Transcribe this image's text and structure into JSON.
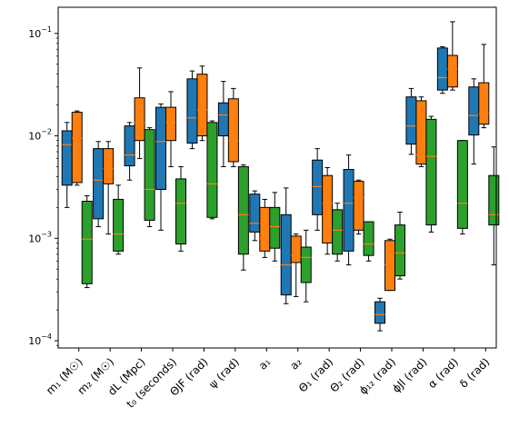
{
  "chart_data": {
    "type": "box",
    "title": "",
    "xlabel": "",
    "ylabel": "",
    "yscale": "log",
    "ylim": [
      8.5e-05,
      0.18
    ],
    "yticks": [
      {
        "value": 0.0001,
        "base": "10",
        "exp": "−4"
      },
      {
        "value": 0.001,
        "base": "10",
        "exp": "−3"
      },
      {
        "value": 0.01,
        "base": "10",
        "exp": "−2"
      },
      {
        "value": 0.1,
        "base": "10",
        "exp": "−1"
      }
    ],
    "categories": [
      "m₁ (M☉)",
      "m₂ (M☉)",
      "dL (Mpc)",
      "t₀ (seconds)",
      "ΘJF (rad)",
      "ψ (rad)",
      "a₁",
      "a₂",
      "Θ₁ (rad)",
      "Θ₂ (rad)",
      "ϕ₁₂ (rad)",
      "ϕJl (rad)",
      "α (rad)",
      "δ (rad)"
    ],
    "grid": false,
    "legend": "none",
    "series": [
      {
        "color": "#1f77b4",
        "median_color": "#ff7f0e",
        "boxes": [
          {
            "whislo": 0.002,
            "q1": 0.0033,
            "med": 0.0082,
            "q3": 0.0112,
            "whishi": 0.0135
          },
          {
            "whislo": 0.0013,
            "q1": 0.00155,
            "med": 0.0037,
            "q3": 0.0075,
            "whishi": 0.0088
          },
          {
            "whislo": 0.0037,
            "q1": 0.0051,
            "med": 0.0065,
            "q3": 0.0125,
            "whishi": 0.0135
          },
          {
            "whislo": 0.0012,
            "q1": 0.003,
            "med": 0.0088,
            "q3": 0.019,
            "whishi": 0.0205
          },
          {
            "whislo": 0.0075,
            "q1": 0.0085,
            "med": 0.015,
            "q3": 0.036,
            "whishi": 0.043
          },
          {
            "whislo": 0.005,
            "q1": 0.01,
            "med": 0.016,
            "q3": 0.021,
            "whishi": 0.034
          },
          {
            "whislo": 0.00095,
            "q1": 0.00115,
            "med": 0.0014,
            "q3": 0.0027,
            "whishi": 0.0029
          },
          {
            "whislo": 0.00023,
            "q1": 0.00028,
            "med": 0.00055,
            "q3": 0.0017,
            "whishi": 0.0031
          },
          {
            "whislo": 0.0012,
            "q1": 0.0017,
            "med": 0.0032,
            "q3": 0.0058,
            "whishi": 0.0075
          },
          {
            "whislo": 0.00055,
            "q1": 0.00075,
            "med": 0.0022,
            "q3": 0.0047,
            "whishi": 0.0065
          },
          {
            "whislo": 0.000125,
            "q1": 0.000148,
            "med": 0.00018,
            "q3": 0.00024,
            "whishi": 0.00026
          },
          {
            "whislo": 0.0066,
            "q1": 0.0083,
            "med": 0.0125,
            "q3": 0.024,
            "whishi": 0.029
          },
          {
            "whislo": 0.026,
            "q1": 0.028,
            "med": 0.037,
            "q3": 0.072,
            "whishi": 0.074
          },
          {
            "whislo": 0.0053,
            "q1": 0.0102,
            "med": 0.0158,
            "q3": 0.03,
            "whishi": 0.036
          }
        ]
      },
      {
        "color": "#ff7f0e",
        "median_color": "#ff7f0e",
        "boxes": [
          {
            "whislo": 0.0033,
            "q1": 0.0035,
            "med": 0.0095,
            "q3": 0.017,
            "whishi": 0.0175
          },
          {
            "whislo": 0.0011,
            "q1": 0.0034,
            "med": 0.0048,
            "q3": 0.0075,
            "whishi": 0.0088
          },
          {
            "whislo": 0.006,
            "q1": 0.009,
            "med": 0.0135,
            "q3": 0.0235,
            "whishi": 0.046
          },
          {
            "whislo": 0.005,
            "q1": 0.009,
            "med": 0.0135,
            "q3": 0.019,
            "whishi": 0.027
          },
          {
            "whislo": 0.009,
            "q1": 0.01,
            "med": 0.018,
            "q3": 0.04,
            "whishi": 0.048
          },
          {
            "whislo": 0.005,
            "q1": 0.0056,
            "med": 0.009,
            "q3": 0.023,
            "whishi": 0.029
          },
          {
            "whislo": 0.00065,
            "q1": 0.00075,
            "med": 0.001,
            "q3": 0.002,
            "whishi": 0.0024
          },
          {
            "whislo": 0.00027,
            "q1": 0.00058,
            "med": 0.00068,
            "q3": 0.00105,
            "whishi": 0.0011
          },
          {
            "whislo": 0.0007,
            "q1": 0.0009,
            "med": 0.0022,
            "q3": 0.0041,
            "whishi": 0.0049
          },
          {
            "whislo": 0.0011,
            "q1": 0.0012,
            "med": 0.0025,
            "q3": 0.0036,
            "whishi": 0.0037
          },
          {
            "whislo": 0.00031,
            "q1": 0.00031,
            "med": 0.00055,
            "q3": 0.00095,
            "whishi": 0.00098
          },
          {
            "whislo": 0.005,
            "q1": 0.0053,
            "med": 0.0065,
            "q3": 0.022,
            "whishi": 0.024
          },
          {
            "whislo": 0.028,
            "q1": 0.03,
            "med": 0.045,
            "q3": 0.061,
            "whishi": 0.13
          },
          {
            "whislo": 0.012,
            "q1": 0.013,
            "med": 0.0165,
            "q3": 0.033,
            "whishi": 0.078
          }
        ]
      },
      {
        "color": "#2ca02c",
        "median_color": "#ff7f0e",
        "boxes": [
          {
            "whislo": 0.00033,
            "q1": 0.00036,
            "med": 0.00098,
            "q3": 0.0023,
            "whishi": 0.0026
          },
          {
            "whislo": 0.0007,
            "q1": 0.00075,
            "med": 0.0011,
            "q3": 0.0024,
            "whishi": 0.0033
          },
          {
            "whislo": 0.0013,
            "q1": 0.0015,
            "med": 0.003,
            "q3": 0.0115,
            "whishi": 0.012
          },
          {
            "whislo": 0.00075,
            "q1": 0.00088,
            "med": 0.0022,
            "q3": 0.0038,
            "whishi": 0.005
          },
          {
            "whislo": 0.00155,
            "q1": 0.0016,
            "med": 0.0034,
            "q3": 0.0135,
            "whishi": 0.014
          },
          {
            "whislo": 0.00049,
            "q1": 0.0007,
            "med": 0.0017,
            "q3": 0.005,
            "whishi": 0.0052
          },
          {
            "whislo": 0.0006,
            "q1": 0.0008,
            "med": 0.0013,
            "q3": 0.002,
            "whishi": 0.0028
          },
          {
            "whislo": 0.00024,
            "q1": 0.00037,
            "med": 0.00065,
            "q3": 0.00082,
            "whishi": 0.0012
          },
          {
            "whislo": 0.0006,
            "q1": 0.0007,
            "med": 0.0012,
            "q3": 0.0019,
            "whishi": 0.0022
          },
          {
            "whislo": 0.0006,
            "q1": 0.00068,
            "med": 0.00088,
            "q3": 0.00145,
            "whishi": 0.00145
          },
          {
            "whislo": 0.0004,
            "q1": 0.00043,
            "med": 0.00072,
            "q3": 0.00135,
            "whishi": 0.0018
          },
          {
            "whislo": 0.00115,
            "q1": 0.00135,
            "med": 0.0063,
            "q3": 0.0145,
            "whishi": 0.0155
          },
          {
            "whislo": 0.0011,
            "q1": 0.00125,
            "med": 0.0022,
            "q3": 0.009,
            "whishi": 0.009
          },
          {
            "whislo": 0.00055,
            "q1": 0.00135,
            "med": 0.0017,
            "q3": 0.0041,
            "whishi": 0.0078
          }
        ]
      }
    ]
  }
}
